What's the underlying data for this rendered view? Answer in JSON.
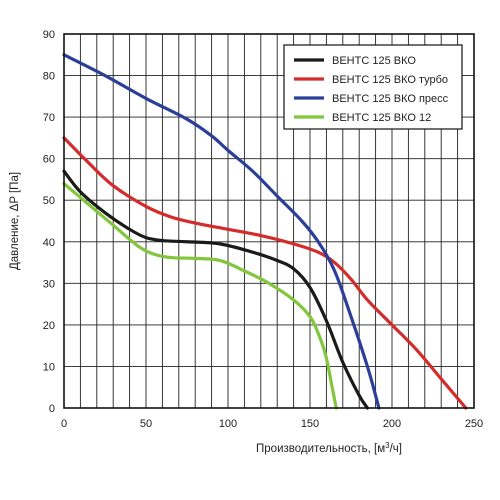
{
  "chart_data": {
    "type": "line",
    "title": "",
    "xlabel": "Производительность, [м³/ч]",
    "ylabel": "Давление, ΔP [Па]",
    "xlim": [
      0,
      250
    ],
    "ylim": [
      0,
      90
    ],
    "x_ticks": [
      "0",
      "50",
      "100",
      "150",
      "200",
      "250"
    ],
    "y_ticks": [
      "0",
      "10",
      "20",
      "30",
      "40",
      "50",
      "60",
      "70",
      "80",
      "90"
    ],
    "grid": true,
    "legend_position": "top-right",
    "series": [
      {
        "name": "ВЕНТС 125 ВКО",
        "color": "#1a1a1a",
        "points": [
          [
            0,
            57
          ],
          [
            10,
            52
          ],
          [
            25,
            47
          ],
          [
            40,
            43
          ],
          [
            50,
            41
          ],
          [
            60,
            40.3
          ],
          [
            75,
            40
          ],
          [
            95,
            39.5
          ],
          [
            115,
            37.5
          ],
          [
            130,
            35.5
          ],
          [
            140,
            33.5
          ],
          [
            150,
            29
          ],
          [
            160,
            21
          ],
          [
            170,
            11
          ],
          [
            180,
            3
          ],
          [
            185,
            0
          ]
        ]
      },
      {
        "name": "ВЕНТС 125 ВКО турбо",
        "color": "#d42b2b",
        "points": [
          [
            0,
            65
          ],
          [
            15,
            59
          ],
          [
            30,
            53.5
          ],
          [
            50,
            48.5
          ],
          [
            65,
            46
          ],
          [
            80,
            44.5
          ],
          [
            100,
            43
          ],
          [
            120,
            41.5
          ],
          [
            140,
            39.5
          ],
          [
            155,
            37.5
          ],
          [
            165,
            35
          ],
          [
            175,
            31
          ],
          [
            185,
            26
          ],
          [
            200,
            20
          ],
          [
            215,
            14
          ],
          [
            230,
            7
          ],
          [
            245,
            0
          ]
        ]
      },
      {
        "name": "ВЕНТС 125 ВКО пресс",
        "color": "#2b3f98",
        "points": [
          [
            0,
            85
          ],
          [
            25,
            80
          ],
          [
            50,
            74.5
          ],
          [
            75,
            69.5
          ],
          [
            90,
            65.5
          ],
          [
            100,
            62
          ],
          [
            115,
            57
          ],
          [
            130,
            51
          ],
          [
            145,
            45
          ],
          [
            155,
            40
          ],
          [
            165,
            33
          ],
          [
            175,
            22
          ],
          [
            185,
            10
          ],
          [
            190,
            3
          ],
          [
            192,
            0
          ]
        ]
      },
      {
        "name": "ВЕНТС 125 ВКО 12",
        "color": "#82c63c",
        "points": [
          [
            0,
            54
          ],
          [
            15,
            49
          ],
          [
            30,
            44
          ],
          [
            45,
            39
          ],
          [
            55,
            37
          ],
          [
            65,
            36.2
          ],
          [
            80,
            36
          ],
          [
            95,
            35.5
          ],
          [
            110,
            33
          ],
          [
            125,
            30
          ],
          [
            140,
            26
          ],
          [
            150,
            22
          ],
          [
            156,
            17
          ],
          [
            160,
            12
          ],
          [
            163,
            6
          ],
          [
            166,
            0
          ]
        ]
      }
    ]
  }
}
